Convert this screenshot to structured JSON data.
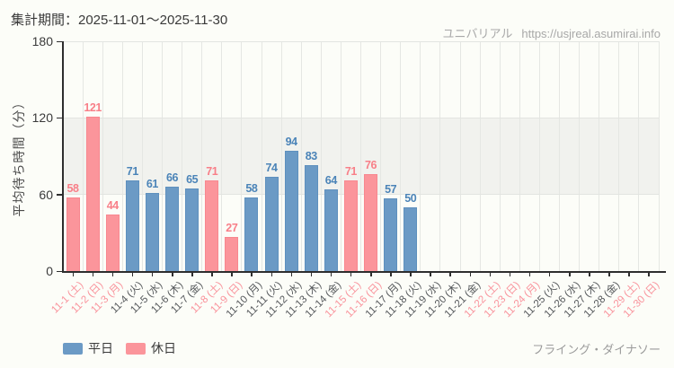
{
  "header": {
    "period": "集計期間：2025-11-01～2025-11-30",
    "site_name": "ユニバリアル",
    "site_url": "https://usjreal.asumirai.info"
  },
  "footer": {
    "attraction_name": "フライング・ダイナソー"
  },
  "legend": {
    "items": [
      {
        "label": "平日",
        "type": "weekday"
      },
      {
        "label": "休日",
        "type": "holiday"
      }
    ]
  },
  "colors": {
    "weekday_bar": "#6b9ac5",
    "weekday_bar_border": "#5e90be",
    "weekday_value_label": "#4b84b8",
    "holiday_bar": "#fb959b",
    "holiday_bar_border": "#f8878f",
    "holiday_value_label": "#f87f88",
    "holiday_axis_label": "#f9929b",
    "weekday_axis_label": "#55585b",
    "axis": "#2e2e2e",
    "gridline": "#e5e7e3",
    "shaded_band": "#f1f2ee",
    "background": "#fcfdf8",
    "muted_text": "#a8a8a8"
  },
  "chart_data": {
    "type": "bar",
    "title": "",
    "xlabel": "",
    "ylabel": "平均待ち時間（分）",
    "ylim": [
      0,
      180
    ],
    "yticks": [
      0,
      60,
      120,
      180
    ],
    "shaded_band": [
      60,
      120
    ],
    "grid": true,
    "legend_position": "bottom-left",
    "days": [
      {
        "label": "11-1 (土)",
        "type": "holiday",
        "value": 58
      },
      {
        "label": "11-2 (日)",
        "type": "holiday",
        "value": 121
      },
      {
        "label": "11-3 (月)",
        "type": "holiday",
        "value": 44
      },
      {
        "label": "11-4 (火)",
        "type": "weekday",
        "value": 71
      },
      {
        "label": "11-5 (水)",
        "type": "weekday",
        "value": 61
      },
      {
        "label": "11-6 (木)",
        "type": "weekday",
        "value": 66
      },
      {
        "label": "11-7 (金)",
        "type": "weekday",
        "value": 65
      },
      {
        "label": "11-8 (土)",
        "type": "holiday",
        "value": 71
      },
      {
        "label": "11-9 (日)",
        "type": "holiday",
        "value": 27
      },
      {
        "label": "11-10 (月)",
        "type": "weekday",
        "value": 58
      },
      {
        "label": "11-11 (火)",
        "type": "weekday",
        "value": 74
      },
      {
        "label": "11-12 (水)",
        "type": "weekday",
        "value": 94
      },
      {
        "label": "11-13 (木)",
        "type": "weekday",
        "value": 83
      },
      {
        "label": "11-14 (金)",
        "type": "weekday",
        "value": 64
      },
      {
        "label": "11-15 (土)",
        "type": "holiday",
        "value": 71
      },
      {
        "label": "11-16 (日)",
        "type": "holiday",
        "value": 76
      },
      {
        "label": "11-17 (月)",
        "type": "weekday",
        "value": 57
      },
      {
        "label": "11-18 (火)",
        "type": "weekday",
        "value": 50
      },
      {
        "label": "11-19 (水)",
        "type": "weekday",
        "value": null
      },
      {
        "label": "11-20 (木)",
        "type": "weekday",
        "value": null
      },
      {
        "label": "11-21 (金)",
        "type": "weekday",
        "value": null
      },
      {
        "label": "11-22 (土)",
        "type": "holiday",
        "value": null
      },
      {
        "label": "11-23 (日)",
        "type": "holiday",
        "value": null
      },
      {
        "label": "11-24 (月)",
        "type": "holiday",
        "value": null
      },
      {
        "label": "11-25 (火)",
        "type": "weekday",
        "value": null
      },
      {
        "label": "11-26 (水)",
        "type": "weekday",
        "value": null
      },
      {
        "label": "11-27 (木)",
        "type": "weekday",
        "value": null
      },
      {
        "label": "11-28 (金)",
        "type": "weekday",
        "value": null
      },
      {
        "label": "11-29 (土)",
        "type": "holiday",
        "value": null
      },
      {
        "label": "11-30 (日)",
        "type": "holiday",
        "value": null
      }
    ]
  }
}
